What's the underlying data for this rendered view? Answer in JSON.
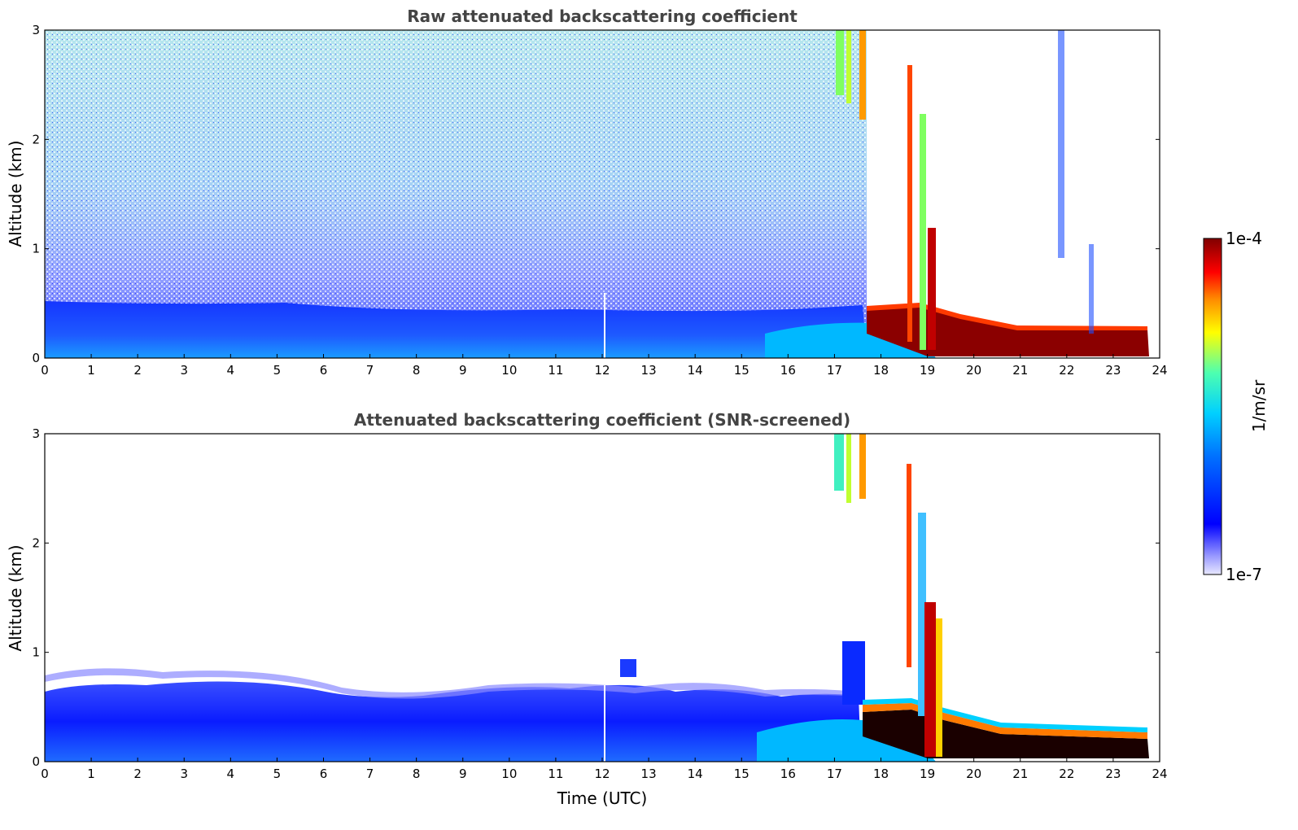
{
  "chart_data": [
    {
      "type": "heatmap",
      "title": "Raw attenuated backscattering coefficient",
      "xlabel": "",
      "ylabel": "Altitude (km)",
      "xlim": [
        0,
        24
      ],
      "ylim": [
        0,
        3
      ],
      "xticks": [
        "0",
        "1",
        "2",
        "3",
        "4",
        "5",
        "6",
        "7",
        "8",
        "9",
        "10",
        "11",
        "12",
        "13",
        "14",
        "15",
        "16",
        "17",
        "18",
        "19",
        "20",
        "21",
        "22",
        "23",
        "24"
      ],
      "yticks": [
        "0",
        "1",
        "2",
        "3"
      ],
      "grid": false
    },
    {
      "type": "heatmap",
      "title": "Attenuated backscattering coefficient (SNR-screened)",
      "xlabel": "Time (UTC)",
      "ylabel": "Altitude (km)",
      "xlim": [
        0,
        24
      ],
      "ylim": [
        0,
        3
      ],
      "xticks": [
        "0",
        "1",
        "2",
        "3",
        "4",
        "5",
        "6",
        "7",
        "8",
        "9",
        "10",
        "11",
        "12",
        "13",
        "14",
        "15",
        "16",
        "17",
        "18",
        "19",
        "20",
        "21",
        "22",
        "23",
        "24"
      ],
      "yticks": [
        "0",
        "1",
        "2",
        "3"
      ],
      "grid": false
    }
  ],
  "colorbar": {
    "label": "1/m/sr",
    "max_label": "1e-4",
    "min_label": "1e-7",
    "scale": "log",
    "colors": [
      "#e8e8ff",
      "#0000ff",
      "#00b7ff",
      "#4dffb0",
      "#ffff00",
      "#ff7a00",
      "#ff0000",
      "#800000"
    ]
  }
}
